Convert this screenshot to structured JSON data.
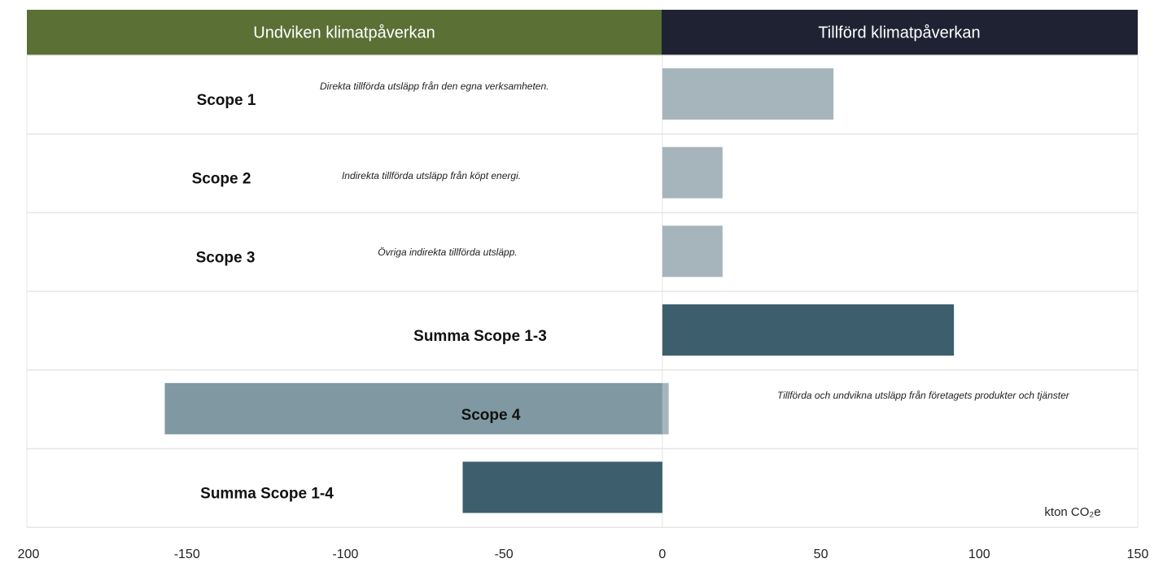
{
  "chart_data": {
    "type": "diverging-bar",
    "header_left": "Undviken klimatpåverkan",
    "header_right": "Tillförd klimatpåverkan",
    "categories": [
      "Scope 1",
      "Scope 2",
      "Scope 3",
      "Summa Scope 1-3",
      "Scope 4",
      "Summa Scope 1-4"
    ],
    "descriptions": [
      "Direkta tillförda utsläpp från den egna verksamheten.",
      "Indirekta tillförda utsläpp från köpt energi.",
      "Övriga indirekta tillförda utsläpp.",
      null,
      "Tillförda och undvikna utsläpp från företagets produkter och tjänster",
      null
    ],
    "series": [
      {
        "name": "Tillförd klimatpåverkan",
        "colors": [
          "#a6b5bc",
          "#a6b5bc",
          "#a6b5bc",
          "#3c5e6d",
          "#a6b5bc",
          null
        ],
        "values": [
          54,
          19,
          19,
          92,
          2,
          null
        ]
      },
      {
        "name": "Undviken klimatpåverkan",
        "colors": [
          null,
          null,
          null,
          null,
          "#7f98a2",
          "#3c5e6d"
        ],
        "values": [
          null,
          null,
          null,
          null,
          -157,
          -63
        ]
      }
    ],
    "unit_label": "kton CO₂e",
    "xlim": [
      -200,
      150
    ],
    "xticks": [
      {
        "value": -200,
        "label": "200"
      },
      -150,
      -100,
      -50,
      0,
      50,
      100,
      150
    ]
  }
}
